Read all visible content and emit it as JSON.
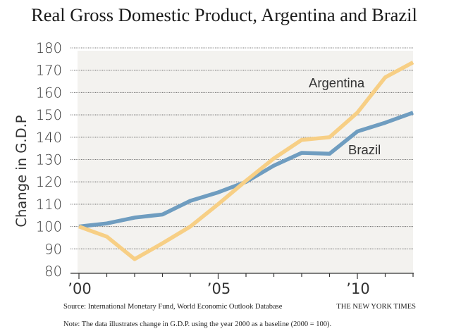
{
  "chart_data": {
    "type": "line",
    "title": "Real Gross Domestic Product, Argentina and Brazil",
    "xlabel": "",
    "ylabel": "Change in G.D.P",
    "x": [
      2000,
      2001,
      2002,
      2003,
      2004,
      2005,
      2006,
      2007,
      2008,
      2009,
      2010,
      2011,
      2012
    ],
    "xlim": [
      2000,
      2012
    ],
    "ylim": [
      80,
      180
    ],
    "yticks": [
      80,
      90,
      100,
      110,
      120,
      130,
      140,
      150,
      160,
      170,
      180
    ],
    "ytick_labels": [
      "80",
      "90",
      "100",
      "110",
      "120",
      "130",
      "140",
      "150",
      "160",
      "170",
      "180"
    ],
    "xticks": [
      2000,
      2001,
      2002,
      2003,
      2004,
      2005,
      2006,
      2007,
      2008,
      2009,
      2010,
      2011,
      2012
    ],
    "xtick_labels": [
      {
        "value": 2000,
        "label": "’00"
      },
      {
        "value": 2005,
        "label": "’05"
      },
      {
        "value": 2010,
        "label": "’10"
      }
    ],
    "grid": "horizontal-dotted",
    "legend": "inline-labels",
    "series": [
      {
        "name": "Argentina",
        "color": "#f7cf85",
        "values": [
          100,
          95.5,
          85.4,
          92.5,
          100,
          110,
          120.5,
          130.5,
          138.8,
          140,
          151,
          166.8,
          173.5
        ],
        "label_position": "upper-right"
      },
      {
        "name": "Brazil",
        "color": "#6f9dc0",
        "values": [
          100,
          101.4,
          104,
          105.4,
          111.5,
          115.3,
          120,
          127.3,
          133,
          132.6,
          142.6,
          146.5,
          151
        ],
        "label_position": "right-below-line"
      }
    ],
    "source": "Source: International Monetary Fund, World Economic Outlook Database",
    "credit": "THE NEW YORK TIMES",
    "note": "Note: The data illustrates change in G.D.P. using the year 2000 as a baseline (2000 = 100)."
  },
  "style": {
    "panel_color": "#f3f2ef",
    "grid_color": "#777777",
    "axis_color": "#333333"
  }
}
